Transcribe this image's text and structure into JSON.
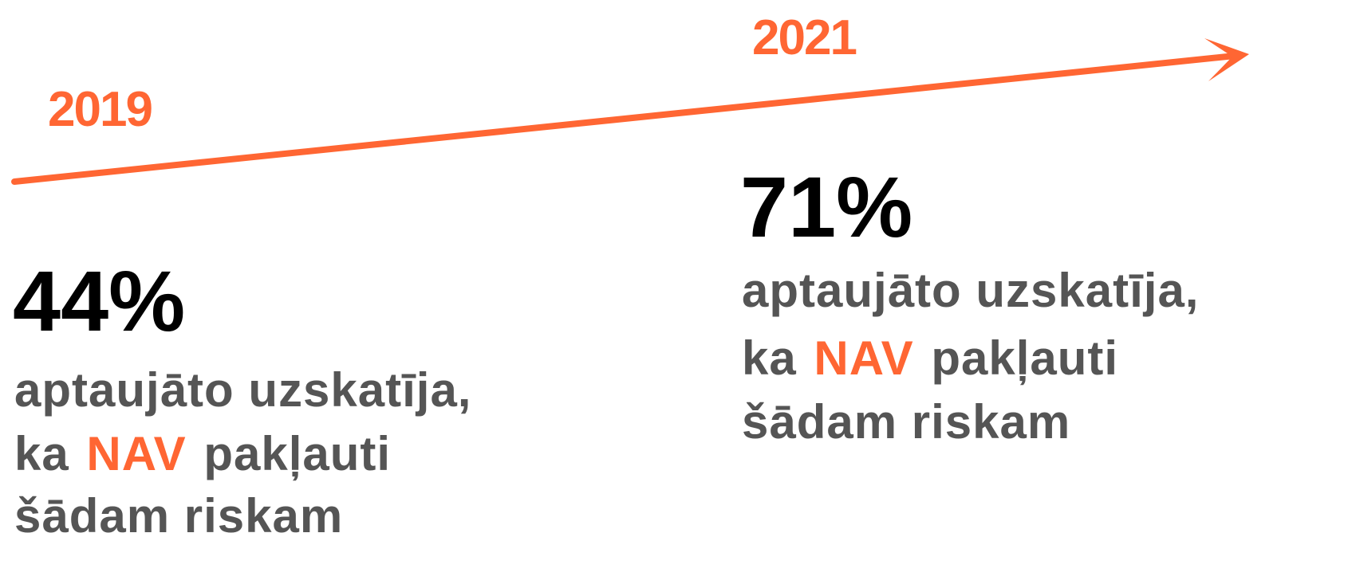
{
  "timeline": {
    "items": [
      {
        "year": "2019",
        "value": "44%",
        "lines": [
          "aptaujāto uzskatīja,",
          [
            "ka",
            "NAV",
            "pakļauti"
          ],
          "šādam riskam"
        ]
      },
      {
        "year": "2021",
        "value": "71%",
        "lines": [
          "aptaujāto uzskatīja,",
          [
            "ka",
            "NAV",
            "pakļauti"
          ],
          "šādam riskam"
        ]
      }
    ]
  }
}
